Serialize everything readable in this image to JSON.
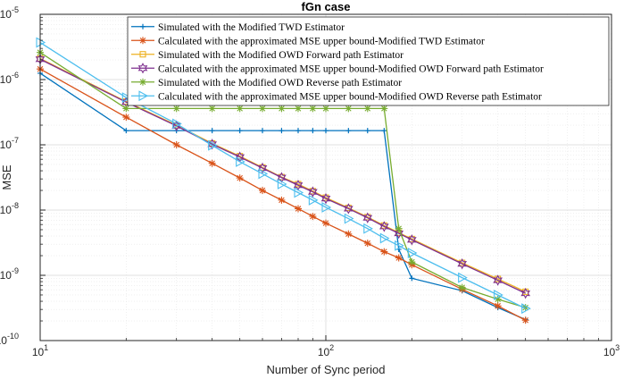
{
  "chart_data": {
    "type": "line",
    "title": "fGn case",
    "xlabel": "Number of Sync period",
    "ylabel": "MSE",
    "xscale": "log",
    "yscale": "log",
    "xlim": [
      10,
      1000
    ],
    "ylim": [
      1e-10,
      1e-05
    ],
    "grid": true,
    "minor_grid": true,
    "legend_position": "top-right",
    "x_ticks": [
      {
        "value": 10,
        "base": "10",
        "exp": "1"
      },
      {
        "value": 100,
        "base": "10",
        "exp": "2"
      },
      {
        "value": 1000,
        "base": "10",
        "exp": "3"
      }
    ],
    "y_ticks": [
      {
        "value": 1e-10,
        "base": "10",
        "exp": "-10"
      },
      {
        "value": 1e-09,
        "base": "10",
        "exp": "-9"
      },
      {
        "value": 1e-08,
        "base": "10",
        "exp": "-8"
      },
      {
        "value": 1e-07,
        "base": "10",
        "exp": "-7"
      },
      {
        "value": 1e-06,
        "base": "10",
        "exp": "-6"
      },
      {
        "value": 1e-05,
        "base": "10",
        "exp": "-5"
      }
    ],
    "series": [
      {
        "name": "Simulated with the Modified TWD Estimator",
        "color": "#0072BD",
        "marker": "plus",
        "x": [
          10,
          20,
          30,
          40,
          50,
          60,
          70,
          80,
          90,
          100,
          120,
          140,
          160,
          180,
          200,
          300,
          400,
          500
        ],
        "y": [
          1.25e-06,
          1.65e-07,
          1.65e-07,
          1.65e-07,
          1.65e-07,
          1.65e-07,
          1.65e-07,
          1.65e-07,
          1.65e-07,
          1.65e-07,
          1.65e-07,
          1.65e-07,
          1.65e-07,
          2.5e-09,
          9e-10,
          5.8e-10,
          3.2e-10,
          2.1e-10
        ]
      },
      {
        "name": "Calculated with the approximated MSE upper bound-Modified TWD Estimator",
        "color": "#D95319",
        "marker": "asterisk",
        "x": [
          10,
          20,
          30,
          40,
          50,
          60,
          70,
          80,
          90,
          100,
          120,
          140,
          160,
          180,
          200,
          300,
          400,
          500
        ],
        "y": [
          1.45e-06,
          2.65e-07,
          1e-07,
          5.2e-08,
          3.1e-08,
          2e-08,
          1.42e-08,
          1.05e-08,
          8e-09,
          6.3e-09,
          4.3e-09,
          3.1e-09,
          2.3e-09,
          1.85e-09,
          1.45e-09,
          6.1e-10,
          3.4e-10,
          2.05e-10
        ]
      },
      {
        "name": "Simulated with the Modified OWD Forward path Estimator",
        "color": "#EDB120",
        "marker": "square",
        "x": [
          10,
          20,
          30,
          40,
          50,
          60,
          70,
          80,
          90,
          100,
          120,
          140,
          160,
          180,
          200,
          300,
          400,
          500
        ],
        "y": [
          2.1e-06,
          4.6e-07,
          2e-07,
          1.05e-07,
          6.7e-08,
          4.5e-08,
          3.2e-08,
          2.5e-08,
          1.95e-08,
          1.55e-08,
          1.08e-08,
          7.8e-09,
          5.8e-09,
          4.5e-09,
          3.6e-09,
          1.55e-09,
          8.8e-10,
          5.6e-10
        ]
      },
      {
        "name": "Calculated with the approximated MSE upper bound-Modified OWD Forward path Estimator",
        "color": "#7E2F8E",
        "marker": "hexagram",
        "x": [
          10,
          20,
          30,
          40,
          50,
          60,
          70,
          80,
          90,
          100,
          120,
          140,
          160,
          180,
          200,
          300,
          400,
          500
        ],
        "y": [
          2.05e-06,
          4.5e-07,
          1.95e-07,
          1.02e-07,
          6.5e-08,
          4.4e-08,
          3.15e-08,
          2.4e-08,
          1.9e-08,
          1.5e-08,
          1.05e-08,
          7.6e-09,
          5.6e-09,
          4.4e-09,
          3.5e-09,
          1.5e-09,
          8.4e-10,
          5.3e-10
        ]
      },
      {
        "name": "Simulated with the Modified OWD Reverse path Estimator",
        "color": "#77AC30",
        "marker": "asterisk",
        "x": [
          10,
          20,
          30,
          40,
          50,
          60,
          70,
          80,
          90,
          100,
          120,
          140,
          160,
          180,
          200,
          300,
          400,
          500
        ],
        "y": [
          2.6e-06,
          3.6e-07,
          3.6e-07,
          3.6e-07,
          3.6e-07,
          3.6e-07,
          3.6e-07,
          3.6e-07,
          3.6e-07,
          3.6e-07,
          3.6e-07,
          3.6e-07,
          3.6e-07,
          5.2e-09,
          1.6e-09,
          6.5e-10,
          4.3e-10,
          3.2e-10
        ]
      },
      {
        "name": "Calculated with the approximated MSE upper bound-Modified OWD Reverse path Estimator",
        "color": "#4DBEEE",
        "marker": "triangle-right",
        "x": [
          10,
          20,
          30,
          40,
          50,
          60,
          70,
          80,
          90,
          100,
          120,
          140,
          160,
          180,
          200,
          300,
          400,
          500
        ],
        "y": [
          3.7e-06,
          5.3e-07,
          2.1e-07,
          9.8e-08,
          5.5e-08,
          3.6e-08,
          2.5e-08,
          1.85e-08,
          1.42e-08,
          1.1e-08,
          7.4e-09,
          5.2e-09,
          3.7e-09,
          2.85e-09,
          2.2e-09,
          9.2e-10,
          5e-10,
          3.1e-10
        ]
      }
    ]
  }
}
